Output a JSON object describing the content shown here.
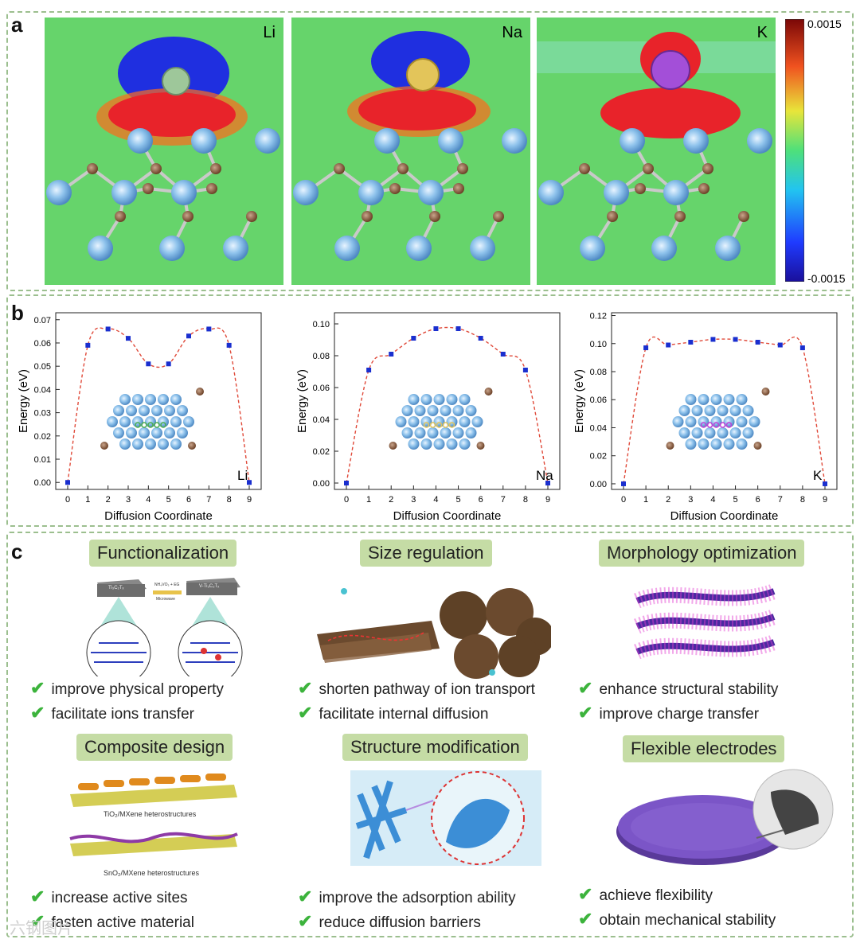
{
  "panel_a": {
    "letter": "a",
    "maps": [
      {
        "label": "Li",
        "ion_color": "#9ec79a"
      },
      {
        "label": "Na",
        "ion_color": "#e3c55a"
      },
      {
        "label": "K",
        "ion_color": "#a34fd8"
      }
    ],
    "colorbar": {
      "max": "0.0015",
      "min": "-0.0015"
    }
  },
  "panel_b": {
    "letter": "b",
    "chart_data": [
      {
        "type": "line",
        "ion_label": "Li",
        "x": [
          0,
          1,
          2,
          3,
          4,
          5,
          6,
          7,
          8,
          9
        ],
        "y": [
          0.0,
          0.059,
          0.066,
          0.062,
          0.051,
          0.051,
          0.063,
          0.066,
          0.059,
          0.0
        ],
        "xlabel": "Diffusion Coordinate",
        "ylabel": "Energy (eV)",
        "ylim": [
          -0.003,
          0.073
        ],
        "yticks": [
          "0.00",
          "0.01",
          "0.02",
          "0.03",
          "0.04",
          "0.05",
          "0.06",
          "0.07"
        ],
        "xticks": [
          "0",
          "1",
          "2",
          "3",
          "4",
          "5",
          "6",
          "7",
          "8",
          "9"
        ],
        "path_color": "#4cae4c"
      },
      {
        "type": "line",
        "ion_label": "Na",
        "x": [
          0,
          1,
          2,
          3,
          4,
          5,
          6,
          7,
          8,
          9
        ],
        "y": [
          0.0,
          0.071,
          0.081,
          0.091,
          0.097,
          0.097,
          0.091,
          0.081,
          0.071,
          0.0
        ],
        "xlabel": "Diffusion Coordinate",
        "ylabel": "Energy (eV)",
        "ylim": [
          -0.004,
          0.107
        ],
        "yticks": [
          "0.00",
          "0.02",
          "0.04",
          "0.06",
          "0.08",
          "0.10"
        ],
        "xticks": [
          "0",
          "1",
          "2",
          "3",
          "4",
          "5",
          "6",
          "7",
          "8",
          "9"
        ],
        "path_color": "#e3c55a"
      },
      {
        "type": "line",
        "ion_label": "K",
        "x": [
          0,
          1,
          2,
          3,
          4,
          5,
          6,
          7,
          8,
          9
        ],
        "y": [
          0.0,
          0.097,
          0.099,
          0.101,
          0.103,
          0.103,
          0.101,
          0.099,
          0.097,
          0.0
        ],
        "xlabel": "Diffusion Coordinate",
        "ylabel": "Energy (eV)",
        "ylim": [
          -0.004,
          0.122
        ],
        "yticks": [
          "0.00",
          "0.02",
          "0.04",
          "0.06",
          "0.08",
          "0.10",
          "0.12"
        ],
        "xticks": [
          "0",
          "1",
          "2",
          "3",
          "4",
          "5",
          "6",
          "7",
          "8",
          "9"
        ],
        "path_color": "#c13fd8"
      }
    ]
  },
  "panel_c": {
    "letter": "c",
    "strategies": [
      {
        "title": "Functionalization",
        "bullets": [
          "improve physical property",
          "facilitate ions transfer"
        ],
        "labels": [
          "Ti₃C₂Tₓ",
          "NH₄VO₃ + EG",
          "Microwave",
          "V-Ti₃C₂Tₓ"
        ]
      },
      {
        "title": "Size regulation",
        "bullets": [
          "shorten pathway of ion transport",
          "facilitate internal diffusion"
        ]
      },
      {
        "title": "Morphology optimization",
        "bullets": [
          "enhance structural stability",
          "improve charge transfer"
        ]
      },
      {
        "title": "Composite design",
        "bullets": [
          "increase active sites",
          "fasten active material"
        ],
        "captions": [
          "TiO₂/MXene heterostructures",
          "SnO₂/MXene heterostructures"
        ]
      },
      {
        "title": "Structure modification",
        "bullets": [
          "improve the adsorption ability",
          "reduce diffusion barriers"
        ]
      },
      {
        "title": "Flexible electrodes",
        "bullets": [
          "achieve flexibility",
          "obtain mechanical stability"
        ]
      }
    ]
  },
  "watermark": "六钢图片",
  "colors": {
    "frame": "#9cbf8f",
    "header_bg": "#c5dca5",
    "check": "#3cb33c",
    "curve": "#e04a3a",
    "marker": "#1a2fcf"
  }
}
